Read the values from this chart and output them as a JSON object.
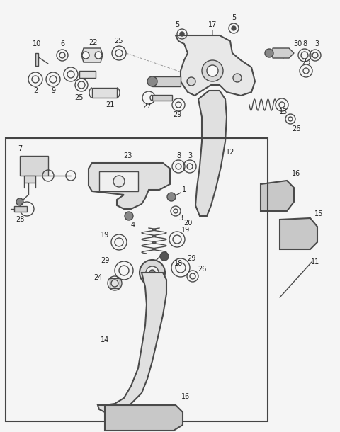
{
  "bg_color": "#f5f5f5",
  "line_color": "#4a4a4a",
  "text_color": "#222222",
  "fig_width": 4.8,
  "fig_height": 6.1,
  "dpi": 100
}
